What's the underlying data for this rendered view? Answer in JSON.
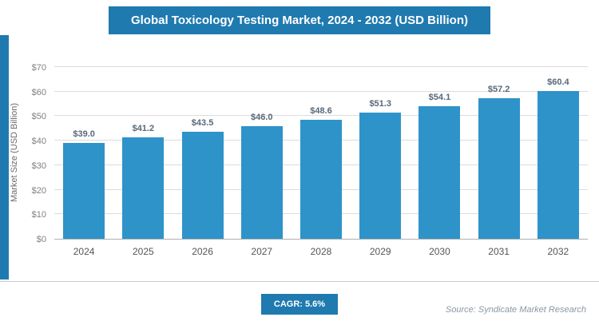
{
  "header": {
    "title": "Global Toxicology Testing Market, 2024 - 2032 (USD Billion)"
  },
  "chart_data": {
    "type": "bar",
    "title": "Global Toxicology Testing Market, 2024 - 2032 (USD Billion)",
    "categories": [
      "2024",
      "2025",
      "2026",
      "2027",
      "2028",
      "2029",
      "2030",
      "2031",
      "2032"
    ],
    "values": [
      39.0,
      41.2,
      43.5,
      46.0,
      48.6,
      51.3,
      54.1,
      57.2,
      60.4
    ],
    "bar_labels": [
      "$39.0",
      "$41.2",
      "$43.5",
      "$46.0",
      "$48.6",
      "$51.3",
      "$54.1",
      "$57.2",
      "$60.4"
    ],
    "xlabel": "",
    "ylabel": "Market Size (USD Billion)",
    "ylim": [
      0,
      70
    ],
    "ytick_labels": [
      "$0",
      "$10",
      "$20",
      "$30",
      "$40",
      "$50",
      "$60",
      "$70"
    ],
    "grid": true,
    "legend": false,
    "bar_color": "#2e93c9"
  },
  "footer": {
    "cagr_label": "CAGR: 5.6%",
    "source": "Source: Syndicate Market Research"
  },
  "colors": {
    "banner_blue": "#1f7ab0",
    "bar_blue": "#2e93c9",
    "value_label": "#57697a",
    "gridline": "#dcdcdc"
  }
}
